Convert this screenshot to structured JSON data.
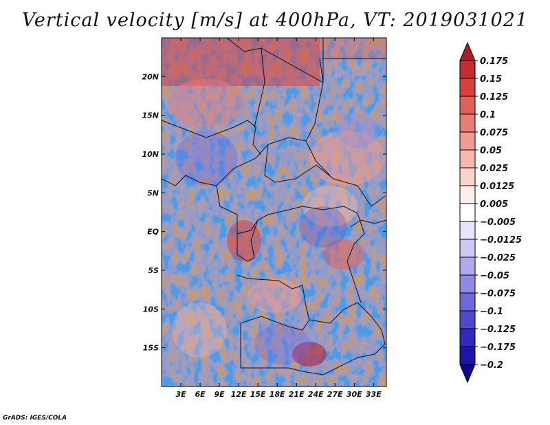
{
  "title": "Vertical velocity [m/s] at 400hPa, VT: 2019031021",
  "credit": "GrADS: IGES/COLA",
  "map": {
    "lat_labels": [
      "20N",
      "15N",
      "10N",
      "5N",
      "EQ",
      "5S",
      "10S",
      "15S"
    ],
    "lon_labels": [
      "3E",
      "6E",
      "9E",
      "12E",
      "15E",
      "18E",
      "21E",
      "24E",
      "27E",
      "30E",
      "33E"
    ],
    "lat_values": [
      20,
      15,
      10,
      5,
      0,
      -5,
      -10,
      -15
    ],
    "lon_values": [
      3,
      6,
      9,
      12,
      15,
      18,
      21,
      24,
      27,
      30,
      33
    ],
    "lat_range": [
      -20,
      25
    ],
    "lon_range": [
      0,
      35
    ]
  },
  "colorbar": {
    "labels": [
      "0.175",
      "0.15",
      "0.125",
      "0.1",
      "0.075",
      "0.05",
      "0.025",
      "0.0125",
      "0.005",
      "−0.005",
      "−0.0125",
      "−0.025",
      "−0.05",
      "−0.075",
      "−0.1",
      "−0.125",
      "−0.175",
      "−0.2"
    ],
    "colors": [
      "#b2182b",
      "#c42c33",
      "#d6413f",
      "#e0605a",
      "#e97d75",
      "#f19b92",
      "#f7b8ae",
      "#fbd3cb",
      "#fdeee9",
      "#ffffff",
      "#e6e4fb",
      "#ccc8f5",
      "#aeaaee",
      "#8f8ae6",
      "#6f68dc",
      "#5048cf",
      "#3128bf",
      "#1e14a8",
      "#10048f"
    ]
  }
}
